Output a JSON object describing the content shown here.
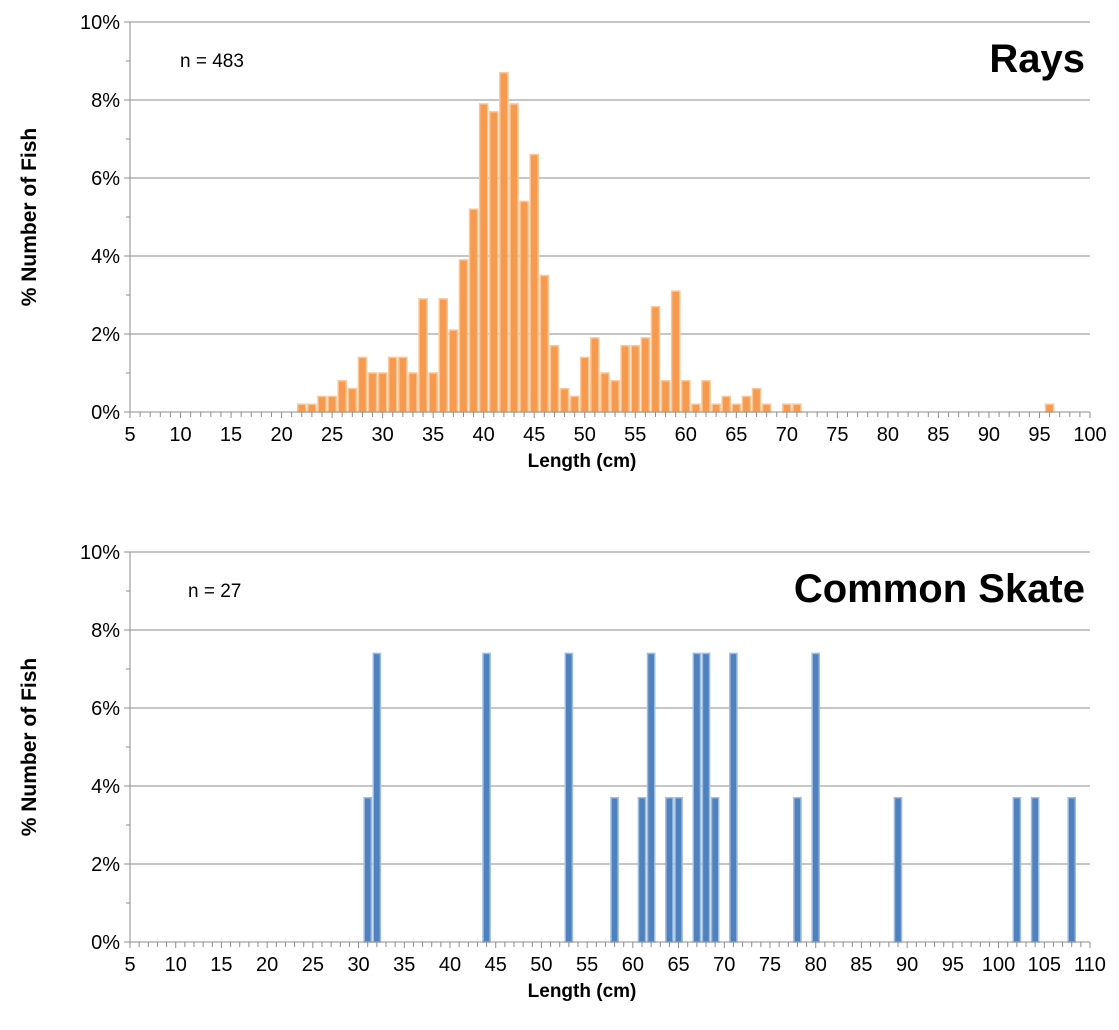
{
  "chart_data": [
    {
      "type": "bar",
      "title": "Rays",
      "annotation": "n = 483",
      "xlabel": "Length (cm)",
      "ylabel": "% Number of Fish",
      "xlim": [
        5,
        100
      ],
      "ylim": [
        0,
        10
      ],
      "y_unit": "%",
      "y_ticks": [
        "0%",
        "2%",
        "4%",
        "6%",
        "8%",
        "10%"
      ],
      "x_ticks": [
        "5",
        "10",
        "15",
        "20",
        "25",
        "30",
        "35",
        "40",
        "45",
        "50",
        "55",
        "60",
        "65",
        "70",
        "75",
        "80",
        "85",
        "90",
        "95",
        "100"
      ],
      "grid": true,
      "bar_color": "#F59A4E",
      "bar_edge": "#FBC797",
      "x": [
        22,
        23,
        24,
        25,
        26,
        27,
        28,
        29,
        30,
        31,
        32,
        33,
        34,
        35,
        36,
        37,
        38,
        39,
        40,
        41,
        42,
        43,
        44,
        45,
        46,
        47,
        48,
        49,
        50,
        51,
        52,
        53,
        54,
        55,
        56,
        57,
        58,
        59,
        60,
        61,
        62,
        63,
        64,
        65,
        66,
        67,
        68,
        69,
        70,
        71,
        96
      ],
      "values": [
        0.2,
        0.2,
        0.4,
        0.4,
        0.8,
        0.6,
        1.4,
        1.0,
        1.0,
        1.4,
        1.4,
        1.0,
        2.9,
        1.0,
        2.9,
        2.1,
        3.9,
        5.2,
        7.9,
        7.7,
        8.7,
        7.9,
        5.4,
        6.6,
        3.5,
        1.7,
        0.6,
        0.4,
        1.4,
        1.9,
        1.0,
        0.8,
        1.7,
        1.7,
        1.9,
        2.7,
        0.8,
        3.1,
        0.8,
        0.2,
        0.8,
        0.2,
        0.4,
        0.2,
        0.4,
        0.6,
        0.2,
        0.0,
        0.2,
        0.2,
        0.2
      ]
    },
    {
      "type": "bar",
      "title": "Common Skate",
      "annotation": "n = 27",
      "xlabel": "Length (cm)",
      "ylabel": "% Number of Fish",
      "xlim": [
        5,
        110
      ],
      "ylim": [
        0,
        10
      ],
      "y_unit": "%",
      "y_ticks": [
        "0%",
        "2%",
        "4%",
        "6%",
        "8%",
        "10%"
      ],
      "x_ticks": [
        "5",
        "10",
        "15",
        "20",
        "25",
        "30",
        "35",
        "40",
        "45",
        "50",
        "55",
        "60",
        "65",
        "70",
        "75",
        "80",
        "85",
        "90",
        "95",
        "100",
        "105",
        "110"
      ],
      "grid": true,
      "bar_color": "#4F81BD",
      "bar_edge": "#9DBCE3",
      "x": [
        31,
        32,
        44,
        53,
        58,
        61,
        62,
        64,
        65,
        67,
        68,
        69,
        71,
        78,
        80,
        89,
        102,
        104,
        108
      ],
      "values": [
        3.7,
        7.4,
        7.4,
        7.4,
        3.7,
        3.7,
        7.4,
        3.7,
        3.7,
        7.4,
        7.4,
        3.7,
        7.4,
        3.7,
        7.4,
        3.7,
        3.7,
        3.7,
        3.7
      ]
    }
  ]
}
